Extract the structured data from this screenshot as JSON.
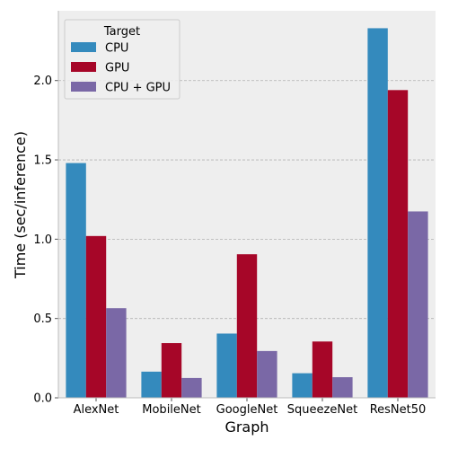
{
  "chart_data": {
    "type": "bar",
    "title": "",
    "xlabel": "Graph",
    "ylabel": "Time (sec/inference)",
    "categories": [
      "AlexNet",
      "MobileNet",
      "GoogleNet",
      "SqueezeNet",
      "ResNet50"
    ],
    "series": [
      {
        "name": "CPU",
        "color": "#348abd",
        "values": [
          1.48,
          0.165,
          0.405,
          0.155,
          2.33
        ]
      },
      {
        "name": "GPU",
        "color": "#a60628",
        "values": [
          1.02,
          0.345,
          0.905,
          0.355,
          1.94
        ]
      },
      {
        "name": "CPU + GPU",
        "color": "#7a68a6",
        "values": [
          0.565,
          0.125,
          0.295,
          0.13,
          1.175
        ]
      }
    ],
    "ylim": [
      0,
      2.44
    ],
    "yticks": [
      0.0,
      0.5,
      1.0,
      1.5,
      2.0
    ],
    "ytick_labels": [
      "0.0",
      "0.5",
      "1.0",
      "1.5",
      "2.0"
    ],
    "grid": true,
    "legend": {
      "title": "Target",
      "position": "top-left"
    },
    "background": "#eeeeee",
    "grid_color": "#b2b2b2"
  }
}
